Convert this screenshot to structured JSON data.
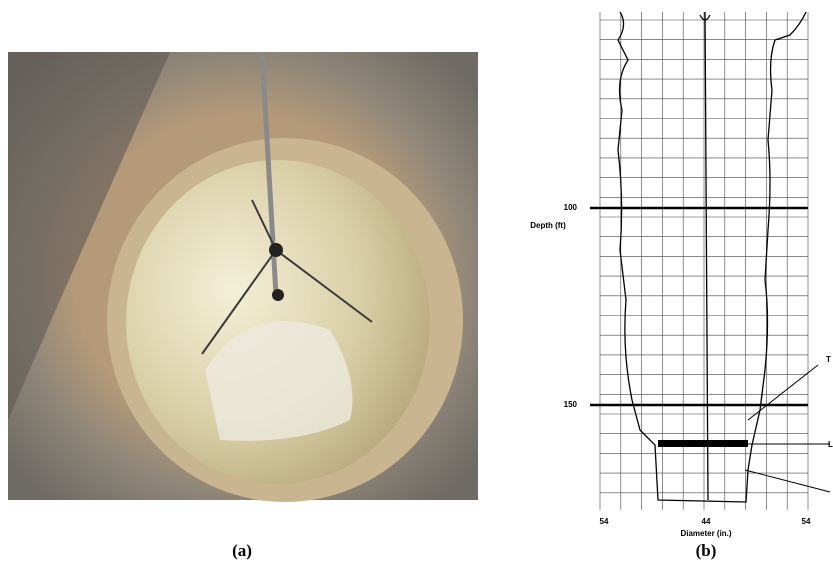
{
  "panel_a": {
    "caption": "(a)"
  },
  "panel_b": {
    "caption": "(b)",
    "depth_label": "Depth (ft)",
    "depth_ticks": [
      "100",
      "150"
    ],
    "diameter_ticks": [
      "54",
      "44",
      "54"
    ],
    "diameter_label": "Diameter (in.)",
    "annotations": [
      "T",
      "L"
    ]
  }
}
